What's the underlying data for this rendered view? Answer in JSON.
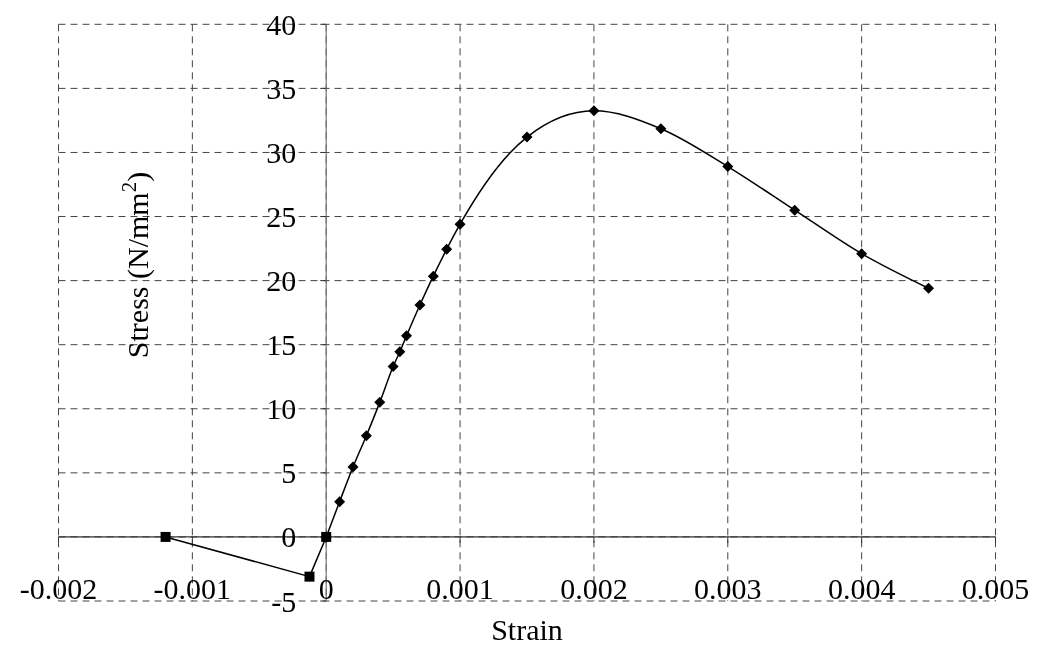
{
  "chart_data": {
    "type": "line",
    "xlabel": "Strain",
    "ylabel": "Stress (N/mm$^{2}$)",
    "xlim": [
      -0.002,
      0.005
    ],
    "xticks": [
      -0.002,
      -0.001,
      0,
      0.001,
      0.002,
      0.003,
      0.004,
      0.005
    ],
    "ylim": [
      -5,
      40
    ],
    "yticks": [
      -5,
      0,
      5,
      10,
      15,
      20,
      25,
      30,
      35,
      40
    ],
    "grid": true,
    "series": [
      {
        "color": "#000000",
        "marker": "square",
        "x": [
          -0.0012,
          -0.000125,
          0
        ],
        "values": [
          0,
          -3.1,
          0
        ]
      },
      {
        "color": "#000000",
        "marker": "diamond",
        "x": [
          0,
          0.0001,
          0.0002,
          0.0003,
          0.0004,
          0.0005,
          0.00055,
          0.0006,
          0.0007,
          0.0008,
          0.0009,
          0.001,
          0.0015,
          0.002,
          0.0025,
          0.003,
          0.0035,
          0.004,
          0.0045
        ],
        "values": [
          0,
          2.75,
          5.45,
          7.9,
          10.5,
          13.3,
          14.45,
          15.7,
          18.1,
          20.35,
          22.45,
          24.4,
          31.2,
          33.25,
          31.85,
          28.9,
          25.5,
          22.1,
          19.4
        ]
      }
    ]
  }
}
